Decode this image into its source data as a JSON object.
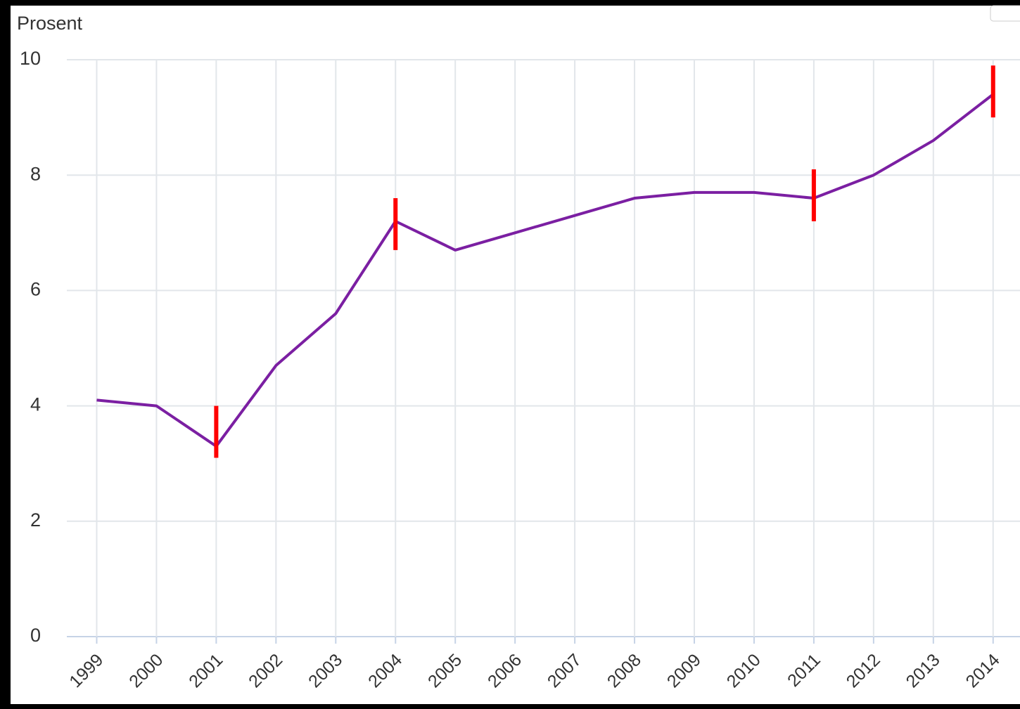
{
  "chart_data": {
    "type": "line",
    "y_label": "Prosent",
    "x": [
      1999,
      2000,
      2001,
      2002,
      2003,
      2004,
      2005,
      2006,
      2007,
      2008,
      2009,
      2010,
      2011,
      2012,
      2013,
      2014
    ],
    "series": [
      {
        "color": "#7b1fa2",
        "values": [
          4.1,
          4.0,
          3.3,
          4.7,
          5.6,
          7.2,
          6.7,
          7.0,
          7.3,
          7.6,
          7.7,
          7.7,
          7.6,
          8.0,
          8.6,
          9.4
        ]
      }
    ],
    "error_bars": {
      "color": "#ff0000",
      "x": [
        2001,
        2004,
        2011,
        2014
      ],
      "low": [
        3.1,
        6.7,
        7.2,
        9.0
      ],
      "high": [
        4.0,
        7.6,
        8.1,
        9.9
      ]
    },
    "xlim": [
      1998.5,
      2014.45
    ],
    "xticks": [
      1999,
      2000,
      2001,
      2002,
      2003,
      2004,
      2005,
      2006,
      2007,
      2008,
      2009,
      2010,
      2011,
      2012,
      2013,
      2014
    ],
    "ylim": [
      0,
      10
    ],
    "yticks": [
      0,
      2,
      4,
      6,
      8,
      10
    ],
    "grid": true
  }
}
